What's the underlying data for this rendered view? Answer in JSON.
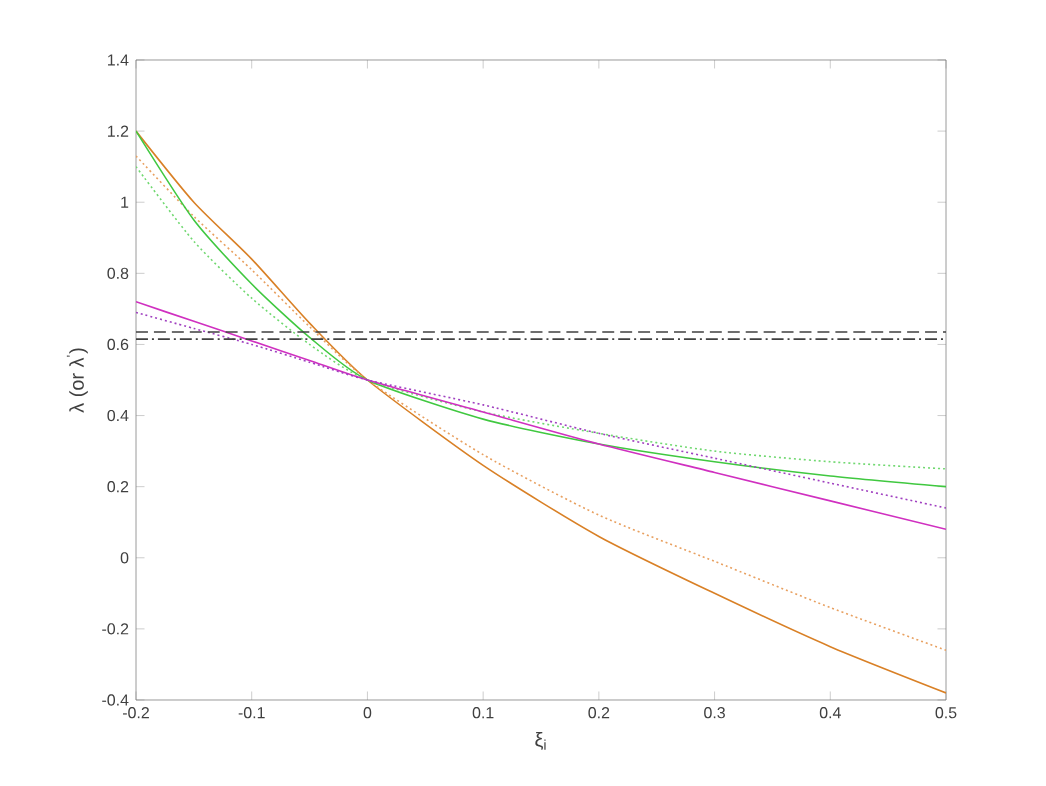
{
  "chart_data": {
    "type": "line",
    "xlabel": "ξ$_{i}$",
    "ylabel": "λ (or λ$^{'}$)",
    "x": [
      -0.2,
      -0.15,
      -0.1,
      -0.05,
      0,
      0.1,
      0.2,
      0.3,
      0.4,
      0.5
    ],
    "series": [
      {
        "color": "#d98026",
        "line_style": "solid",
        "values": [
          1.2,
          1.0,
          0.84,
          0.66,
          0.5,
          0.26,
          0.06,
          -0.1,
          -0.25,
          -0.38
        ]
      },
      {
        "color": "#e8a060",
        "line_style": "dotted",
        "values": [
          1.13,
          0.96,
          0.81,
          0.65,
          0.5,
          0.29,
          0.12,
          -0.01,
          -0.14,
          -0.26
        ]
      },
      {
        "color": "#40c840",
        "line_style": "solid",
        "values": [
          1.2,
          0.95,
          0.77,
          0.62,
          0.5,
          0.39,
          0.32,
          0.27,
          0.23,
          0.2
        ]
      },
      {
        "color": "#70d870",
        "line_style": "dotted",
        "values": [
          1.1,
          0.89,
          0.73,
          0.6,
          0.5,
          0.41,
          0.35,
          0.3,
          0.27,
          0.25
        ]
      },
      {
        "color": "#d030c0",
        "line_style": "solid",
        "values": [
          0.72,
          0.665,
          0.61,
          0.555,
          0.5,
          0.41,
          0.32,
          0.24,
          0.16,
          0.08
        ]
      },
      {
        "color": "#a040c0",
        "line_style": "dotted",
        "values": [
          0.69,
          0.645,
          0.6,
          0.55,
          0.5,
          0.43,
          0.35,
          0.28,
          0.21,
          0.14
        ]
      }
    ],
    "ref_lines": [
      {
        "axis": "y",
        "value": 0.635,
        "color": "#404040",
        "line_style": "dashed"
      },
      {
        "axis": "y",
        "value": 0.615,
        "color": "#404040",
        "line_style": "dashdot"
      }
    ],
    "xlim": [
      -0.2,
      0.5
    ],
    "xticks": [
      -0.2,
      -0.1,
      0,
      0.1,
      0.2,
      0.3,
      0.4,
      0.5
    ],
    "ylim": [
      -0.4,
      1.4
    ],
    "yticks": [
      -0.4,
      -0.2,
      0,
      0.2,
      0.4,
      0.6,
      0.8,
      1,
      1.2,
      1.4
    ],
    "marker": "none"
  }
}
